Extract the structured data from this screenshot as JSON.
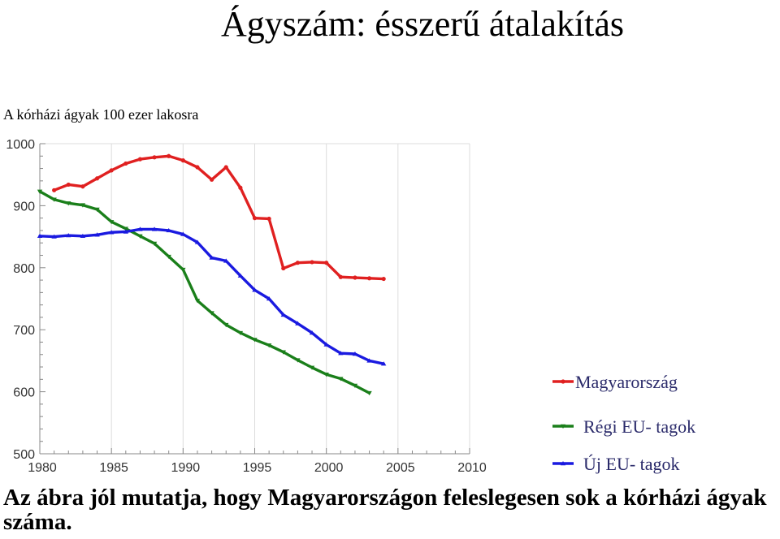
{
  "page": {
    "title": "Ágyszám: ésszerű átalakítás",
    "caption": "Az ábra jól mutatja, hogy Magyarországon feleslegesen sok a kórházi ágyak száma."
  },
  "chart_data": {
    "type": "line",
    "title": "A kórházi ágyak 100 ezer lakosra",
    "xlim": [
      1980,
      2010
    ],
    "ylim": [
      500,
      1000
    ],
    "x_ticks": [
      "1980",
      "1985",
      "1990",
      "1995",
      "2000",
      "2005",
      "2010"
    ],
    "y_ticks": [
      "1000",
      "900",
      "800",
      "700",
      "600",
      "500"
    ],
    "grid": "vertical",
    "legend_position": "right",
    "series": [
      {
        "name": "Magyarország",
        "color": "#e02020",
        "marker": "circle",
        "x": [
          1981,
          1982,
          1983,
          1984,
          1985,
          1986,
          1987,
          1988,
          1989,
          1990,
          1991,
          1992,
          1993,
          1994,
          1995,
          1996,
          1997,
          1998,
          1999,
          2000,
          2001,
          2002,
          2003,
          2004
        ],
        "values": [
          925,
          934,
          931,
          944,
          957,
          968,
          975,
          978,
          980,
          973,
          962,
          942,
          962,
          929,
          880,
          879,
          799,
          808,
          809,
          808,
          785,
          784,
          783,
          782
        ]
      },
      {
        "name": "Régi EU- tagok",
        "color": "#1a7f1a",
        "marker": "triangle-down",
        "x": [
          1980,
          1981,
          1982,
          1983,
          1984,
          1985,
          1986,
          1987,
          1988,
          1989,
          1990,
          1991,
          1992,
          1993,
          1994,
          1995,
          1996,
          1997,
          1998,
          1999,
          2000,
          2001,
          2002,
          2003
        ],
        "values": [
          923,
          910,
          904,
          901,
          894,
          874,
          863,
          851,
          839,
          818,
          797,
          747,
          727,
          708,
          695,
          684,
          675,
          664,
          651,
          639,
          628,
          621,
          610,
          598
        ]
      },
      {
        "name": "Új EU- tagok",
        "color": "#1a1ae0",
        "marker": "triangle-up",
        "x": [
          1980,
          1981,
          1982,
          1983,
          1984,
          1985,
          1986,
          1987,
          1988,
          1989,
          1990,
          1991,
          1992,
          1993,
          1994,
          1995,
          1996,
          1997,
          1998,
          1999,
          2000,
          2001,
          2002,
          2003,
          2004
        ],
        "values": [
          851,
          850,
          852,
          851,
          853,
          857,
          858,
          862,
          862,
          860,
          854,
          841,
          816,
          811,
          787,
          764,
          750,
          724,
          710,
          695,
          676,
          662,
          661,
          650,
          645
        ]
      }
    ]
  }
}
